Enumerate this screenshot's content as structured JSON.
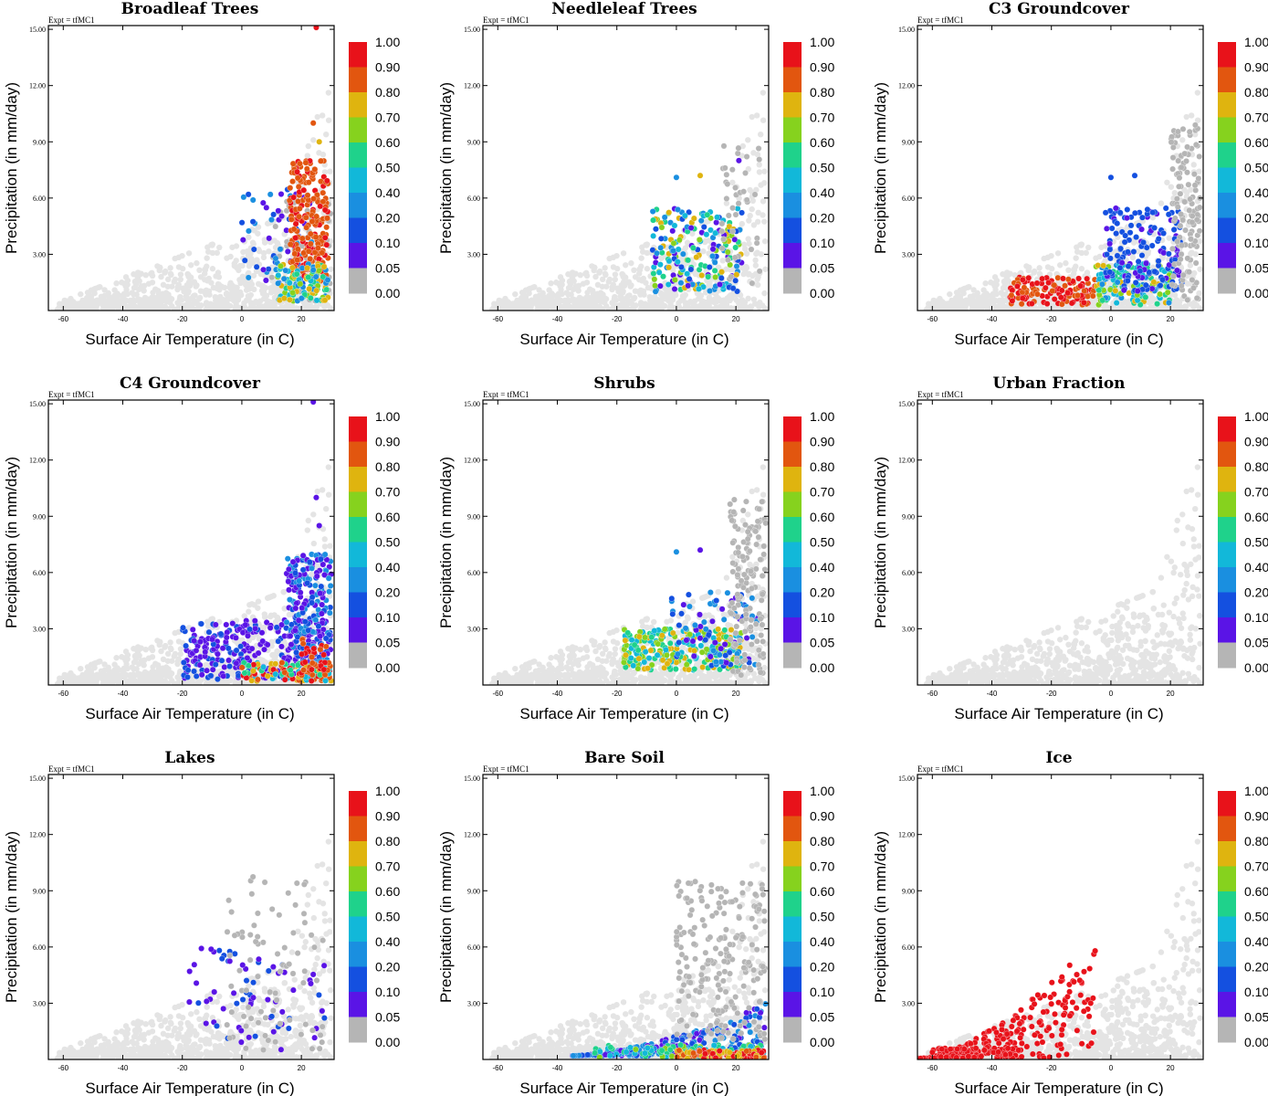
{
  "experiment_label": "Expt = tfMC1",
  "xlabel": "Surface Air Temperature (in C)",
  "ylabel": "Precipitation (in mm/day)",
  "x_ticks": [
    "-60",
    "-40",
    "-20",
    "0",
    "20"
  ],
  "y_ticks": [
    "3.00",
    "6.00",
    "9.00",
    "12.00",
    "15.00"
  ],
  "colorbar": {
    "labels": [
      "1.00",
      "0.90",
      "0.80",
      "0.70",
      "0.60",
      "0.50",
      "0.40",
      "0.20",
      "0.10",
      "0.05",
      "0.00"
    ],
    "colors": [
      "#e8121a",
      "#e2560f",
      "#dfb40f",
      "#86d21e",
      "#1fd28b",
      "#12b8d9",
      "#1a8fe0",
      "#1450e0",
      "#5a14e6",
      "#b5b5b5"
    ]
  },
  "background_points_color": "#e4e4e4",
  "chart_data": [
    {
      "type": "scatter",
      "title": "Broadleaf Trees",
      "xlim": [
        -65,
        31
      ],
      "ylim": [
        0,
        15.2
      ],
      "cluster": "broadleaf"
    },
    {
      "type": "scatter",
      "title": "Needleleaf Trees",
      "xlim": [
        -65,
        31
      ],
      "ylim": [
        0,
        15.2
      ],
      "cluster": "needleleaf"
    },
    {
      "type": "scatter",
      "title": "C3 Groundcover",
      "xlim": [
        -65,
        31
      ],
      "ylim": [
        0,
        15.2
      ],
      "cluster": "c3"
    },
    {
      "type": "scatter",
      "title": "C4 Groundcover",
      "xlim": [
        -65,
        31
      ],
      "ylim": [
        0,
        15.2
      ],
      "cluster": "c4"
    },
    {
      "type": "scatter",
      "title": "Shrubs",
      "xlim": [
        -65,
        31
      ],
      "ylim": [
        0,
        15.2
      ],
      "cluster": "shrubs"
    },
    {
      "type": "scatter",
      "title": "Urban Fraction",
      "xlim": [
        -65,
        31
      ],
      "ylim": [
        0,
        15.2
      ],
      "cluster": "urban"
    },
    {
      "type": "scatter",
      "title": "Lakes",
      "xlim": [
        -65,
        31
      ],
      "ylim": [
        0,
        15.2
      ],
      "cluster": "lakes"
    },
    {
      "type": "scatter",
      "title": "Bare Soil",
      "xlim": [
        -65,
        31
      ],
      "ylim": [
        0,
        15.2
      ],
      "cluster": "baresoil"
    },
    {
      "type": "scatter",
      "title": "Ice",
      "xlim": [
        -65,
        31
      ],
      "ylim": [
        0,
        15.2
      ],
      "cluster": "ice"
    }
  ]
}
